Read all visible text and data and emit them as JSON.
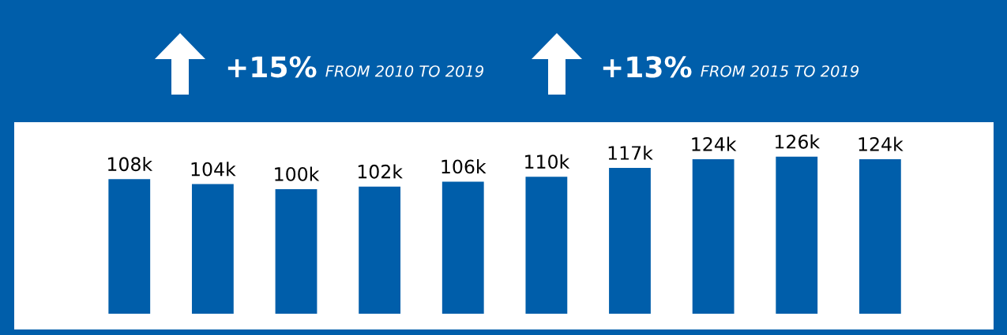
{
  "chart_data": {
    "type": "bar",
    "categories": [
      null,
      null,
      null,
      null,
      null,
      null,
      null,
      null,
      null,
      null
    ],
    "values": [
      108000,
      104000,
      100000,
      102000,
      106000,
      110000,
      117000,
      124000,
      126000,
      124000
    ],
    "value_labels": [
      "108k",
      "104k",
      "100k",
      "102k",
      "106k",
      "110k",
      "117k",
      "124k",
      "126k",
      "124k"
    ],
    "color": "#005eaa",
    "tick_labels": false,
    "annotations": [
      "+15%",
      "FROM 2010 TO 2019",
      "+13%",
      "FROM 2015 TO 2019"
    ]
  }
}
